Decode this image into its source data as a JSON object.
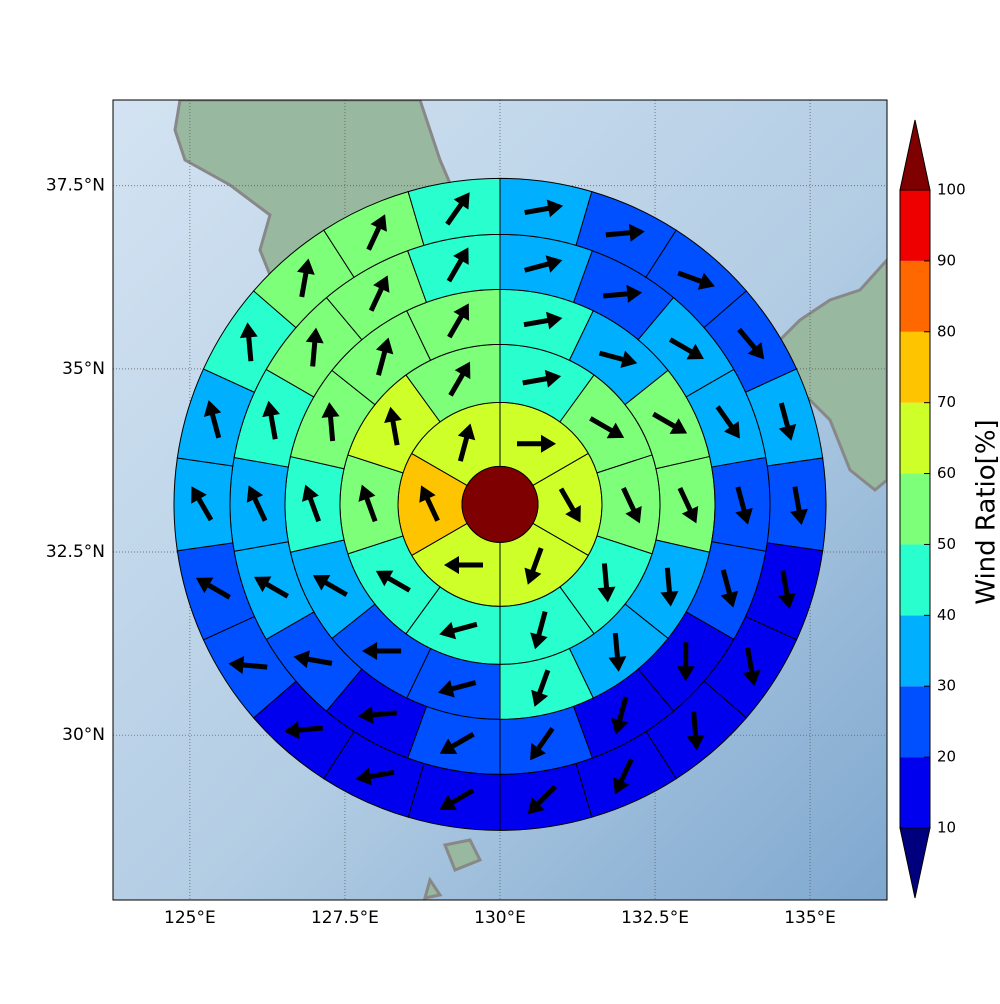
{
  "chart_data": {
    "type": "polar",
    "xlim": [
      123.76,
      136.24
    ],
    "ylim": [
      27.75,
      38.67
    ],
    "xticks": [
      {
        "value": 125,
        "label": "125°E"
      },
      {
        "value": 127.5,
        "label": "127.5°E"
      },
      {
        "value": 130,
        "label": "130°E"
      },
      {
        "value": 132.5,
        "label": "132.5°E"
      },
      {
        "value": 135,
        "label": "135°E"
      }
    ],
    "yticks": [
      {
        "value": 30,
        "label": "30°N"
      },
      {
        "value": 32.5,
        "label": "32.5°N"
      },
      {
        "value": 35,
        "label": "35°N"
      },
      {
        "value": 37.5,
        "label": "37.5°N"
      }
    ],
    "grid": true,
    "center": [
      130,
      33.15
    ],
    "center_value": 105,
    "rings": [
      {
        "values": [
          65,
          65,
          65,
          65,
          75,
          65
        ],
        "directions": [
          90,
          150,
          200,
          270,
          335,
          15
        ]
      },
      {
        "values": [
          45,
          55,
          55,
          45,
          45,
          45,
          45,
          55,
          65,
          55
        ],
        "directions": [
          80,
          120,
          155,
          175,
          195,
          255,
          300,
          340,
          350,
          30
        ]
      },
      {
        "values": [
          45,
          35,
          55,
          55,
          35,
          35,
          45,
          25,
          25,
          35,
          45,
          55,
          55,
          55
        ],
        "directions": [
          80,
          105,
          120,
          155,
          175,
          175,
          200,
          255,
          270,
          300,
          340,
          355,
          15,
          30
        ]
      },
      {
        "values": [
          35,
          25,
          35,
          35,
          25,
          25,
          15,
          15,
          25,
          25,
          15,
          25,
          35,
          35,
          45,
          55,
          55,
          45
        ],
        "directions": [
          75,
          85,
          120,
          145,
          165,
          165,
          180,
          195,
          215,
          240,
          265,
          280,
          300,
          335,
          350,
          5,
          25,
          30
        ]
      },
      {
        "values": [
          35,
          25,
          25,
          25,
          35,
          25,
          15,
          15,
          15,
          15,
          15,
          15,
          15,
          15,
          25,
          25,
          35,
          35,
          45,
          55,
          55,
          45
        ],
        "directions": [
          80,
          85,
          110,
          140,
          165,
          170,
          170,
          170,
          175,
          205,
          225,
          240,
          260,
          265,
          275,
          300,
          330,
          345,
          355,
          10,
          25,
          35
        ]
      }
    ],
    "colorbar": {
      "label": "Wind Ratio[%]",
      "levels": [
        10,
        20,
        30,
        40,
        50,
        60,
        70,
        80,
        90,
        100
      ],
      "colors": [
        "#0000ee",
        "#0050ff",
        "#00b0ff",
        "#29ffce",
        "#7dff7a",
        "#ceff29",
        "#ffc400",
        "#ff6800",
        "#ef0000"
      ],
      "under_color": "#00007f",
      "over_color": "#7f0000"
    }
  }
}
